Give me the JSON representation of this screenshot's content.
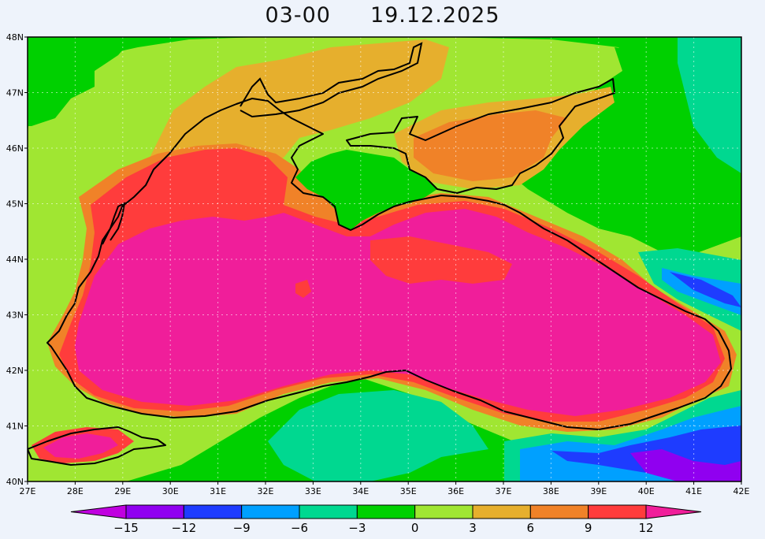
{
  "title": {
    "time": "03-00",
    "date": "19.12.2025"
  },
  "map": {
    "lon_range": [
      27,
      42
    ],
    "lat_range": [
      40,
      48
    ],
    "lon_labels": [
      "27E",
      "28E",
      "29E",
      "30E",
      "31E",
      "32E",
      "33E",
      "34E",
      "35E",
      "36E",
      "37E",
      "38E",
      "39E",
      "40E",
      "41E",
      "42E"
    ],
    "lat_labels": [
      "40N",
      "41N",
      "42N",
      "43N",
      "44N",
      "45N",
      "46N",
      "47N",
      "48N"
    ]
  },
  "legend": {
    "labels": [
      "-15",
      "-12",
      "-9",
      "-6",
      "-3",
      "0",
      "3",
      "6",
      "9",
      "12"
    ],
    "colors": [
      "#c000e0",
      "#9000f0",
      "#1e3cff",
      "#00a0ff",
      "#00d890",
      "#00d000",
      "#a0e632",
      "#e6af2d",
      "#f08228",
      "#ff3c3c",
      "#f01e9a"
    ]
  },
  "colors": {
    "land_green_dark": "#00d000",
    "land_green_light": "#a0e632",
    "land_teal": "#00d890",
    "land_blue": "#1e3cff",
    "sea_orange": "#f08228",
    "sea_red": "#ff3c3c",
    "sea_magenta": "#f01e9a",
    "coast": "#000000"
  }
}
